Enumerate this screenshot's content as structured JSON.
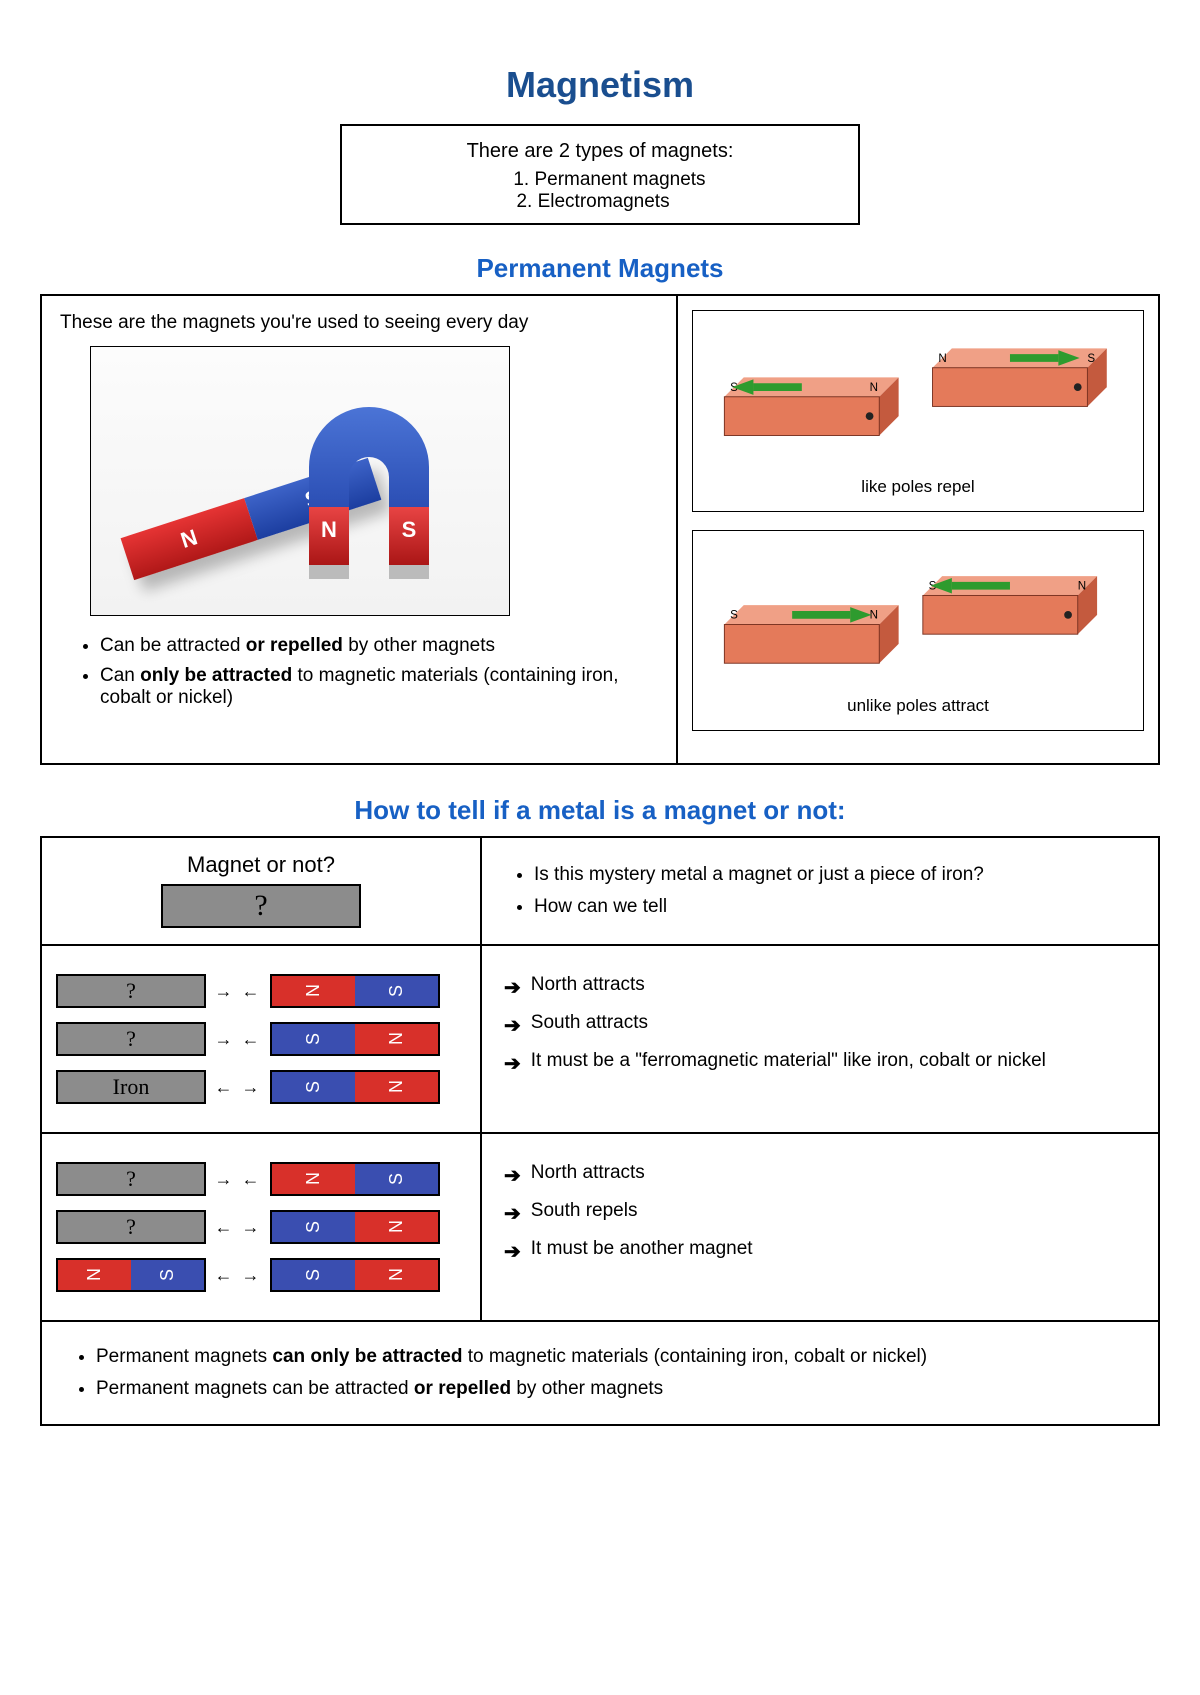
{
  "colors": {
    "heading_blue": "#1a4e8f",
    "bright_blue": "#1760c4",
    "red": "#d8302a",
    "blue": "#3a4eb0",
    "grey": "#8c8c8c",
    "bar3d_fill": "#e47a5a",
    "bar3d_top": "#f0a086",
    "bar3d_side": "#c45a3e",
    "arrow_green": "#2e9b2e"
  },
  "title": "Magnetism",
  "intro": {
    "heading": "There are 2 types of magnets:",
    "items": [
      "Permanent magnets",
      "Electromagnets"
    ]
  },
  "permanent": {
    "heading": "Permanent Magnets",
    "lead": "These are the magnets you're used to seeing every day",
    "photo_labels": {
      "N": "N",
      "S": "S"
    },
    "bullets": [
      {
        "pre": "Can be attracted ",
        "bold": "or repelled",
        "post": " by other magnets"
      },
      {
        "pre": "Can ",
        "bold": "only be attracted",
        "post": " to magnetic materials (containing iron, cobalt or nickel)"
      }
    ],
    "repel_caption": "like poles repel",
    "attract_caption": "unlike poles attract",
    "pole_labels": {
      "N": "N",
      "S": "S"
    }
  },
  "howto": {
    "heading": "How to tell if a metal is a magnet or not:",
    "row1": {
      "title": "Magnet or not?",
      "mystery_symbol": "?",
      "questions": [
        "Is this mystery metal a magnet or just a piece of iron?",
        "How can we tell"
      ]
    },
    "row2": {
      "bars": [
        {
          "left_label": "?",
          "arrows": "→ ←",
          "magnet": [
            "N",
            "S"
          ],
          "colors": [
            "red",
            "blue"
          ]
        },
        {
          "left_label": "?",
          "arrows": "→ ←",
          "magnet": [
            "S",
            "N"
          ],
          "colors": [
            "blue",
            "red"
          ]
        },
        {
          "left_label": "Iron",
          "arrows": "← →",
          "magnet": [
            "S",
            "N"
          ],
          "colors": [
            "blue",
            "red"
          ]
        }
      ],
      "results": [
        "North attracts",
        "South attracts",
        "It must be a \"ferromagnetic material\" like iron, cobalt or nickel"
      ]
    },
    "row3": {
      "bars": [
        {
          "left_label": "?",
          "left_type": "grey",
          "arrows": "→ ←",
          "magnet": [
            "N",
            "S"
          ],
          "colors": [
            "red",
            "blue"
          ]
        },
        {
          "left_label": "?",
          "left_type": "grey",
          "arrows": "← →",
          "magnet": [
            "S",
            "N"
          ],
          "colors": [
            "blue",
            "red"
          ]
        },
        {
          "left_label": "",
          "left_type": "magnet",
          "left_magnet": [
            "N",
            "S"
          ],
          "left_colors": [
            "red",
            "blue"
          ],
          "arrows": "← →",
          "magnet": [
            "S",
            "N"
          ],
          "colors": [
            "blue",
            "red"
          ]
        }
      ],
      "results": [
        "North attracts",
        "South repels",
        "It must be another magnet"
      ]
    },
    "summary": [
      {
        "pre": "Permanent magnets ",
        "bold": "can only be attracted",
        "post": " to magnetic materials (containing iron, cobalt or nickel)"
      },
      {
        "pre": "Permanent magnets can be attracted ",
        "bold": "or repelled",
        "post": " by other magnets"
      }
    ]
  }
}
